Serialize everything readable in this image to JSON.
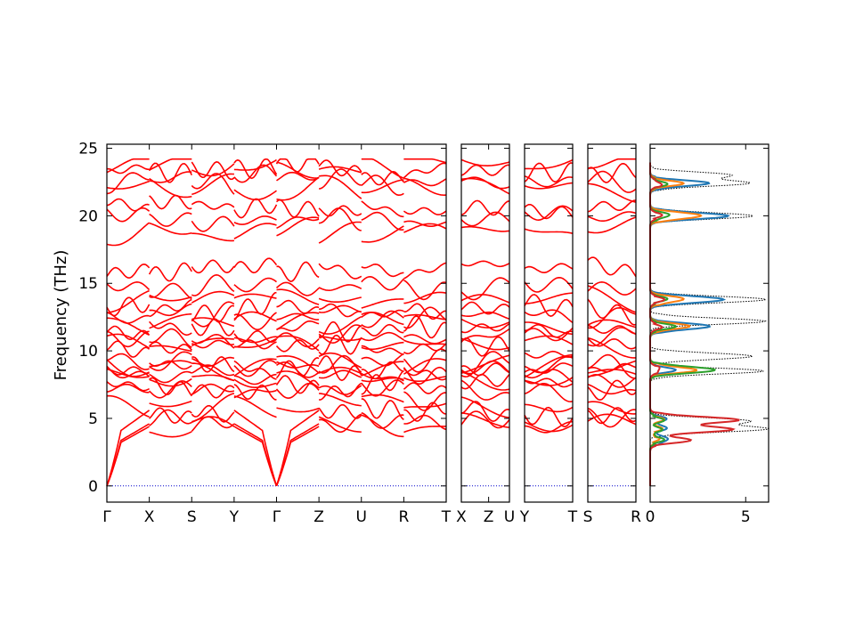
{
  "chart_data": {
    "type": "line",
    "ylabel": "Frequency (THz)",
    "ylim": [
      -1.2,
      25.3
    ],
    "y_ticks": [
      0,
      5,
      10,
      15,
      20,
      25
    ],
    "colors": {
      "bands": "#ff0000",
      "zero_line": "#0000cc",
      "dos_total": "#000000",
      "pdos": [
        "#1f77b4",
        "#ff7f0e",
        "#2ca02c",
        "#d62728"
      ]
    },
    "band_panels": [
      {
        "segments": 8,
        "labels": [
          "Γ",
          "X",
          "S",
          "Y",
          "Γ",
          "Z",
          "U",
          "R",
          "T",
          "Z"
        ]
      },
      {
        "segments": 1,
        "labels": [
          "X",
          "U"
        ]
      },
      {
        "segments": 1,
        "labels": [
          "Y",
          "T"
        ]
      },
      {
        "segments": 1,
        "labels": [
          "S",
          "R"
        ]
      }
    ],
    "band_gamma_freqs": [
      4.4,
      4.6,
      5.6,
      6.0,
      6.8,
      7.4,
      7.9,
      8.3,
      8.6,
      8.9,
      9.2,
      10.2,
      10.6,
      11.0,
      11.6,
      12.0,
      12.6,
      13.1,
      13.9,
      14.8,
      16.0,
      18.9,
      19.8,
      20.5,
      22.0,
      22.6,
      23.3,
      23.8
    ],
    "dos": {
      "xlim": [
        0,
        6.2
      ],
      "x_ticks": [
        0,
        5
      ],
      "total_peaks": [
        {
          "f": 4.2,
          "value": 6.0
        },
        {
          "f": 4.8,
          "value": 5.2
        },
        {
          "f": 8.5,
          "value": 5.8
        },
        {
          "f": 9.6,
          "value": 5.5
        },
        {
          "f": 12.2,
          "value": 6.0
        },
        {
          "f": 13.8,
          "value": 6.2
        },
        {
          "f": 20.0,
          "value": 5.5
        },
        {
          "f": 22.4,
          "value": 5.0
        },
        {
          "f": 23.0,
          "value": 4.2
        }
      ],
      "pdos_peaks": [
        {
          "f": 20.0,
          "values": [
            4.2,
            2.8,
            1.0,
            0.5
          ]
        },
        {
          "f": 22.4,
          "values": [
            3.0,
            1.6,
            0.8,
            0.6
          ]
        },
        {
          "f": 13.8,
          "values": [
            4.0,
            1.8,
            0.8,
            0.6
          ]
        },
        {
          "f": 11.8,
          "values": [
            3.2,
            2.0,
            1.2,
            0.5
          ]
        },
        {
          "f": 8.6,
          "values": [
            1.2,
            2.4,
            3.5,
            0.6
          ]
        },
        {
          "f": 4.9,
          "values": [
            0.8,
            0.6,
            0.6,
            4.6
          ]
        },
        {
          "f": 4.2,
          "values": [
            0.8,
            0.5,
            0.5,
            4.3
          ]
        },
        {
          "f": 3.4,
          "values": [
            1.0,
            0.4,
            0.6,
            2.0
          ]
        }
      ]
    }
  }
}
